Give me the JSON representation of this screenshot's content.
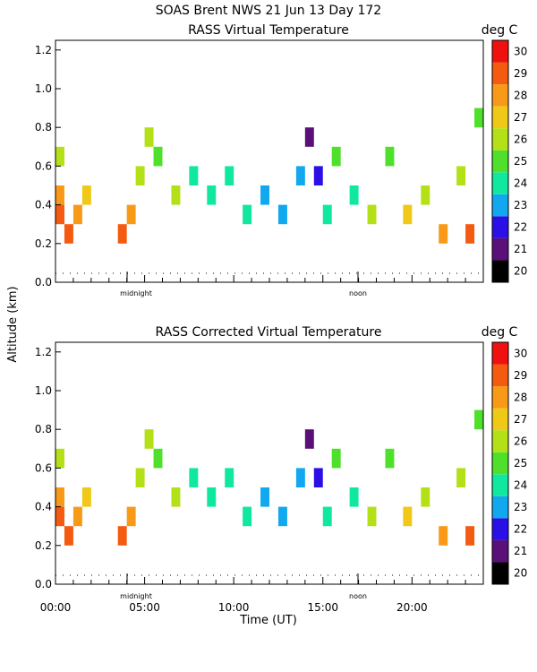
{
  "header": {
    "title": "SOAS Brent NWS  21 Jun 13 Day 172"
  },
  "chart_data": [
    {
      "type": "heatmap",
      "title": "RASS Virtual Temperature",
      "units": "deg C",
      "ylabel": "Altitude (km)",
      "xlabel": "Time (UT)",
      "xlim": [
        0,
        24
      ],
      "ylim": [
        0,
        1.25
      ],
      "yticks": [
        "0.0",
        "0.2",
        "0.4",
        "0.6",
        "0.8",
        "1.0",
        "1.2"
      ],
      "xticks": [
        "00:00",
        "05:00",
        "10:00",
        "15:00",
        "20:00"
      ],
      "markers": [
        {
          "label": "midnight",
          "x": 4.0
        },
        {
          "label": "noon",
          "x": 17.0
        }
      ],
      "reference_altitude_km": 0.05,
      "colorbar": {
        "levels": [
          20,
          21,
          22,
          23,
          24,
          25,
          26,
          27,
          28,
          29,
          30
        ],
        "colors": [
          "#000000",
          "#5a1078",
          "#2a10e6",
          "#12a8f0",
          "#10e8a0",
          "#4ee02a",
          "#b4e018",
          "#f0c818",
          "#f89a18",
          "#f45a10",
          "#f01010"
        ]
      },
      "cells": [
        [
          0.0,
          0.3,
          29.5
        ],
        [
          0.0,
          0.4,
          28.0
        ],
        [
          0.0,
          0.6,
          26.5
        ],
        [
          0.5,
          0.2,
          29.2
        ],
        [
          1.0,
          0.3,
          28.7
        ],
        [
          1.5,
          0.4,
          27.8
        ],
        [
          3.5,
          0.2,
          29.0
        ],
        [
          4.0,
          0.3,
          28.0
        ],
        [
          4.5,
          0.5,
          26.6
        ],
        [
          5.0,
          0.7,
          26.5
        ],
        [
          5.5,
          0.6,
          25.8
        ],
        [
          6.5,
          0.4,
          26.0
        ],
        [
          7.5,
          0.5,
          24.8
        ],
        [
          8.5,
          0.4,
          24.7
        ],
        [
          9.5,
          0.5,
          24.0
        ],
        [
          10.5,
          0.3,
          24.2
        ],
        [
          11.5,
          0.4,
          23.8
        ],
        [
          12.5,
          0.3,
          23.6
        ],
        [
          13.5,
          0.5,
          23.2
        ],
        [
          14.0,
          0.7,
          21.0
        ],
        [
          14.5,
          0.5,
          22.0
        ],
        [
          15.0,
          0.3,
          24.0
        ],
        [
          15.5,
          0.6,
          25.0
        ],
        [
          16.5,
          0.4,
          24.5
        ],
        [
          17.5,
          0.3,
          26.5
        ],
        [
          18.5,
          0.6,
          25.2
        ],
        [
          19.5,
          0.3,
          27.4
        ],
        [
          20.5,
          0.4,
          26.8
        ],
        [
          21.5,
          0.2,
          28.4
        ],
        [
          22.5,
          0.5,
          26.5
        ],
        [
          23.0,
          0.2,
          29.0
        ],
        [
          23.5,
          0.8,
          25.0
        ]
      ]
    },
    {
      "type": "heatmap",
      "title": "RASS Corrected Virtual Temperature",
      "units": "deg C",
      "ylabel": "Altitude (km)",
      "xlabel": "Time (UT)",
      "xlim": [
        0,
        24
      ],
      "ylim": [
        0,
        1.25
      ],
      "yticks": [
        "0.0",
        "0.2",
        "0.4",
        "0.6",
        "0.8",
        "1.0",
        "1.2"
      ],
      "xticks": [
        "00:00",
        "05:00",
        "10:00",
        "15:00",
        "20:00"
      ],
      "markers": [
        {
          "label": "midnight",
          "x": 4.0
        },
        {
          "label": "noon",
          "x": 17.0
        }
      ],
      "reference_altitude_km": 0.05,
      "colorbar": {
        "levels": [
          20,
          21,
          22,
          23,
          24,
          25,
          26,
          27,
          28,
          29,
          30
        ],
        "colors": [
          "#000000",
          "#5a1078",
          "#2a10e6",
          "#12a8f0",
          "#10e8a0",
          "#4ee02a",
          "#b4e018",
          "#f0c818",
          "#f89a18",
          "#f45a10",
          "#f01010"
        ]
      },
      "cells": [
        [
          0.0,
          0.3,
          29.5
        ],
        [
          0.0,
          0.4,
          28.0
        ],
        [
          0.0,
          0.6,
          26.5
        ],
        [
          0.5,
          0.2,
          29.2
        ],
        [
          1.0,
          0.3,
          28.7
        ],
        [
          1.5,
          0.4,
          27.8
        ],
        [
          3.5,
          0.2,
          29.0
        ],
        [
          4.0,
          0.3,
          28.0
        ],
        [
          4.5,
          0.5,
          26.6
        ],
        [
          5.0,
          0.7,
          26.5
        ],
        [
          5.5,
          0.6,
          25.8
        ],
        [
          6.5,
          0.4,
          26.0
        ],
        [
          7.5,
          0.5,
          24.8
        ],
        [
          8.5,
          0.4,
          24.7
        ],
        [
          9.5,
          0.5,
          24.0
        ],
        [
          10.5,
          0.3,
          24.2
        ],
        [
          11.5,
          0.4,
          23.8
        ],
        [
          12.5,
          0.3,
          23.6
        ],
        [
          13.5,
          0.5,
          23.2
        ],
        [
          14.0,
          0.7,
          21.0
        ],
        [
          14.5,
          0.5,
          22.0
        ],
        [
          15.0,
          0.3,
          24.0
        ],
        [
          15.5,
          0.6,
          25.0
        ],
        [
          16.5,
          0.4,
          24.5
        ],
        [
          17.5,
          0.3,
          26.5
        ],
        [
          18.5,
          0.6,
          25.2
        ],
        [
          19.5,
          0.3,
          27.4
        ],
        [
          20.5,
          0.4,
          26.8
        ],
        [
          21.5,
          0.2,
          28.4
        ],
        [
          22.5,
          0.5,
          26.5
        ],
        [
          23.0,
          0.2,
          29.0
        ],
        [
          23.5,
          0.8,
          25.0
        ]
      ]
    }
  ]
}
